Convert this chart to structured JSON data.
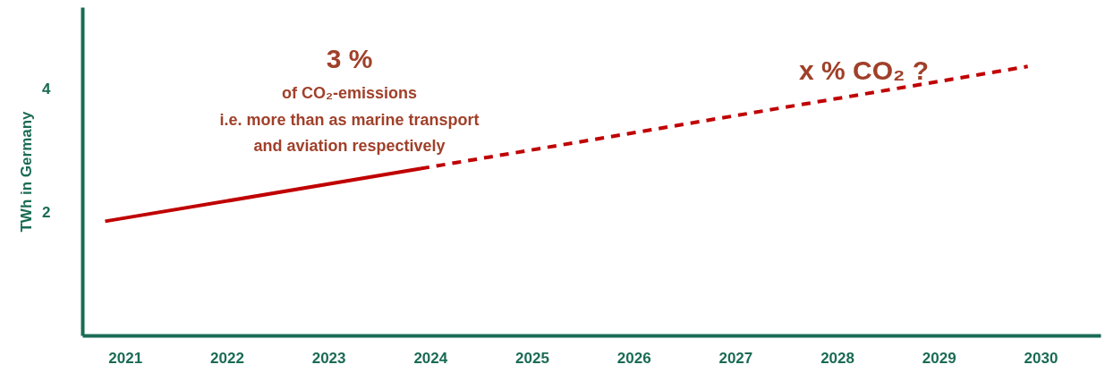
{
  "chart_data": {
    "type": "line",
    "ylabel": "TWh in Germany",
    "xlim": [
      2020.58,
      2030.59
    ],
    "xticks": [
      2021,
      2022,
      2023,
      2024,
      2025,
      2026,
      2027,
      2028,
      2029,
      2030
    ],
    "ylim": [
      0,
      5.3
    ],
    "yticks": [
      2,
      4
    ],
    "grid": false,
    "marker": "none",
    "series": [
      {
        "color": "#c00000",
        "x": [
          2020.8,
          2023.9
        ],
        "values": [
          1.85,
          2.7
        ],
        "line_style": "solid"
      },
      {
        "color": "#c00000",
        "x": [
          2023.9,
          2029.87
        ],
        "values": [
          2.7,
          4.35
        ],
        "line_style": "dashed"
      }
    ],
    "annotations": [
      "3 %",
      "of CO₂-emissions",
      "i.e. more than as marine transport",
      "and aviation respectively",
      "x % CO₂ ?"
    ]
  }
}
